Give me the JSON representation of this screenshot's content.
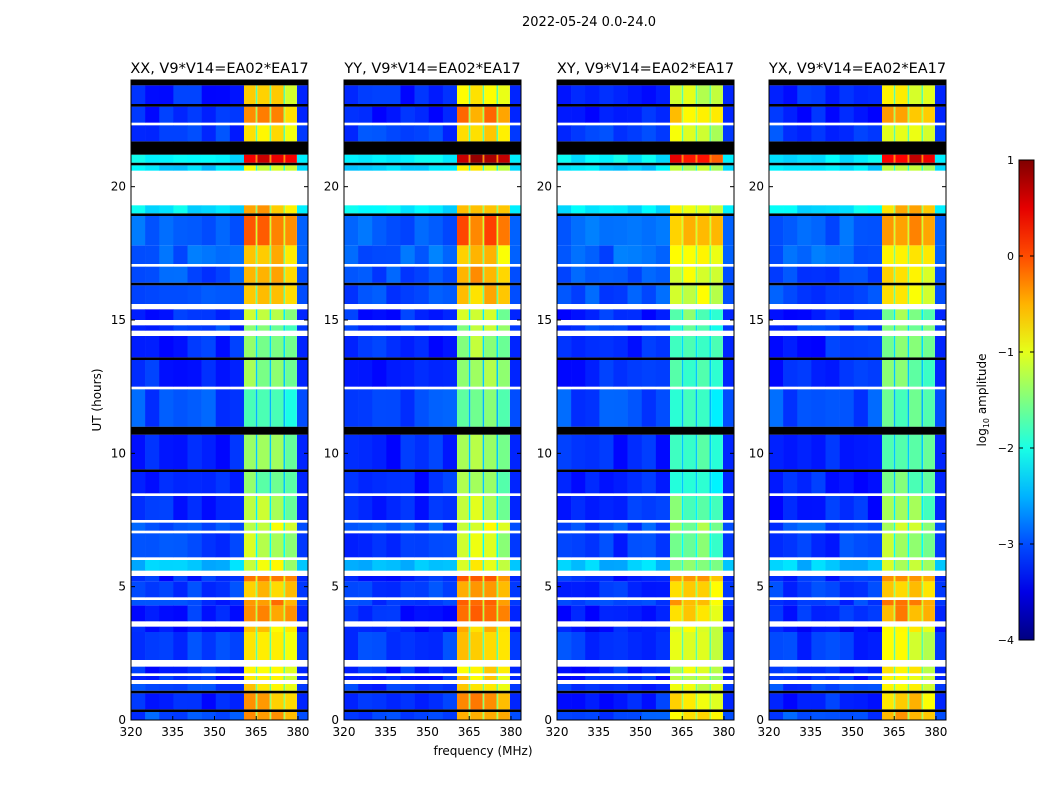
{
  "chart_data": {
    "type": "heatmap",
    "title": "2022-05-24 0.0-24.0",
    "xlabel": "frequency (MHz)",
    "ylabel": "UT (hours)",
    "xlim": [
      320,
      383.6
    ],
    "ylim": [
      0,
      24
    ],
    "xticks": [
      320,
      335,
      350,
      365,
      380
    ],
    "xtick_labels": [
      "320",
      "335",
      "350",
      "365",
      "380"
    ],
    "yticks": [
      0,
      5,
      10,
      15,
      20
    ],
    "ytick_labels": [
      "0",
      "5",
      "10",
      "15",
      "20"
    ],
    "colorbar": {
      "label_prefix": "log",
      "label_sub": "10",
      "label_suffix": " amplitude",
      "range": [
        -4,
        1
      ],
      "ticks": [
        1,
        0,
        -1,
        -2,
        -3,
        -4
      ],
      "tick_labels": [
        "1",
        "0",
        "−1",
        "−2",
        "−3",
        "−4"
      ],
      "colormap": "jet"
    },
    "rfi_band_MHz": [
      [
        360.6,
        364.8
      ],
      [
        365.4,
        369.8
      ],
      [
        370.4,
        374.8
      ],
      [
        375.4,
        379.6
      ]
    ],
    "panels": [
      {
        "title": "XX, V9*V14=EA02*EA17",
        "rfi_offset": 0
      },
      {
        "title": "YY, V9*V14=EA02*EA17",
        "rfi_offset": 0.1
      },
      {
        "title": "XY, V9*V14=EA02*EA17",
        "rfi_offset": -0.3
      },
      {
        "title": "YX, V9*V14=EA02*EA17",
        "rfi_offset": -0.1
      }
    ],
    "time_segments_note": "[t_start_h, t_end_h, background_log10_amp, rfi_log10_amp]; null background = no data (white), 'flag' = flagged (black)",
    "time_segments": [
      [
        0.0,
        0.3,
        -3.0,
        -0.4
      ],
      [
        0.3,
        0.4,
        "flag",
        "flag"
      ],
      [
        0.4,
        1.0,
        -3.2,
        -0.5
      ],
      [
        1.0,
        1.1,
        "flag",
        "flag"
      ],
      [
        1.1,
        1.35,
        -3.1,
        -0.7
      ],
      [
        1.35,
        1.5,
        null,
        null
      ],
      [
        1.5,
        1.65,
        -3.2,
        -0.8
      ],
      [
        1.65,
        1.75,
        null,
        null
      ],
      [
        1.75,
        2.0,
        -3.2,
        -0.8
      ],
      [
        2.0,
        2.25,
        null,
        null
      ],
      [
        2.25,
        3.3,
        -3.1,
        -0.8
      ],
      [
        3.3,
        3.5,
        -3.3,
        -0.7
      ],
      [
        3.5,
        3.7,
        null,
        null
      ],
      [
        3.7,
        4.3,
        -3.2,
        -0.3
      ],
      [
        4.3,
        4.5,
        -3.1,
        -0.2
      ],
      [
        4.5,
        4.6,
        null,
        null
      ],
      [
        4.6,
        5.2,
        -3.1,
        -0.5
      ],
      [
        5.2,
        5.4,
        -3.2,
        -0.1
      ],
      [
        5.4,
        5.6,
        null,
        null
      ],
      [
        5.6,
        6.0,
        -2.4,
        -1.0
      ],
      [
        6.0,
        6.1,
        null,
        null
      ],
      [
        6.1,
        7.0,
        -3.1,
        -1.2
      ],
      [
        7.0,
        7.1,
        null,
        null
      ],
      [
        7.1,
        7.4,
        -3.0,
        -1.1
      ],
      [
        7.4,
        7.5,
        null,
        null
      ],
      [
        7.5,
        8.4,
        -3.2,
        -1.3
      ],
      [
        8.4,
        8.5,
        null,
        null
      ],
      [
        8.5,
        9.3,
        -3.2,
        -1.5
      ],
      [
        9.3,
        9.4,
        "flag",
        "flag"
      ],
      [
        9.4,
        10.7,
        -3.2,
        -1.5
      ],
      [
        10.7,
        11.0,
        "flag",
        "flag"
      ],
      [
        11.0,
        12.4,
        -3.0,
        -1.6
      ],
      [
        12.4,
        12.5,
        null,
        null
      ],
      [
        12.5,
        13.5,
        -3.2,
        -1.5
      ],
      [
        13.5,
        13.6,
        "flag",
        "flag"
      ],
      [
        13.6,
        14.4,
        -3.2,
        -1.4
      ],
      [
        14.4,
        14.6,
        null,
        null
      ],
      [
        14.6,
        14.8,
        -3.1,
        -1.4
      ],
      [
        14.8,
        15.0,
        null,
        null
      ],
      [
        15.0,
        15.4,
        -3.2,
        -1.3
      ],
      [
        15.4,
        15.6,
        null,
        null
      ],
      [
        15.6,
        16.3,
        -3.0,
        -0.7
      ],
      [
        16.3,
        16.4,
        "flag",
        "flag"
      ],
      [
        16.4,
        17.0,
        -3.0,
        -0.6
      ],
      [
        17.0,
        17.1,
        null,
        null
      ],
      [
        17.1,
        17.8,
        -2.9,
        -0.6
      ],
      [
        17.8,
        18.9,
        -2.9,
        -0.2
      ],
      [
        18.9,
        19.0,
        "flag",
        "flag"
      ],
      [
        19.0,
        19.3,
        -2.2,
        -0.5
      ],
      [
        19.3,
        20.6,
        null,
        null
      ],
      [
        20.6,
        20.8,
        -2.3,
        -1.0
      ],
      [
        20.8,
        20.9,
        "flag",
        "flag"
      ],
      [
        20.9,
        21.2,
        -2.2,
        0.6
      ],
      [
        21.2,
        21.7,
        "flag",
        "flag"
      ],
      [
        21.7,
        22.3,
        -3.1,
        -0.8
      ],
      [
        22.3,
        22.4,
        null,
        null
      ],
      [
        22.4,
        23.0,
        -3.2,
        -0.4
      ],
      [
        23.0,
        23.1,
        "flag",
        "flag"
      ],
      [
        23.1,
        23.8,
        -3.2,
        -0.8
      ],
      [
        23.8,
        24.0,
        "flag",
        "flag"
      ]
    ]
  }
}
